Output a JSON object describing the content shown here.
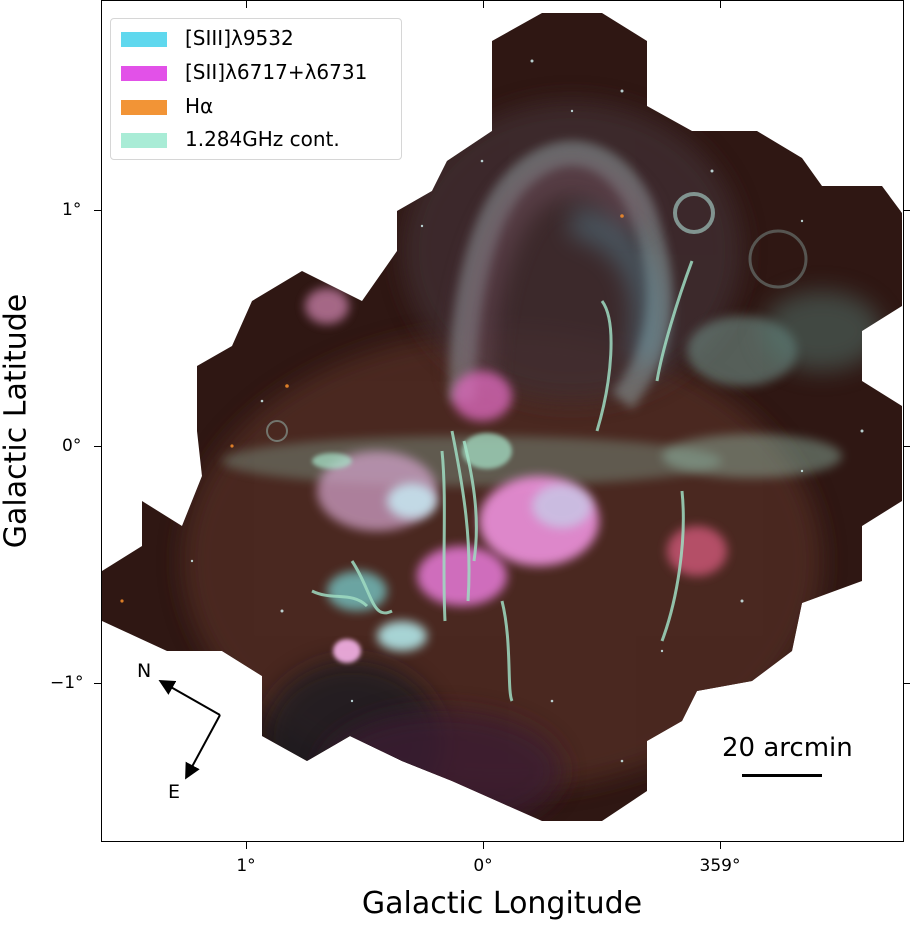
{
  "image": {
    "description_items": {
      "x_label": "Galactic Longitude",
      "y_label": "Galactic Latitude"
    },
    "x_ticks": [
      "1°",
      "0°",
      "359°"
    ],
    "y_ticks": [
      "1°",
      "0°",
      "−1°"
    ],
    "legend": [
      {
        "label": "[SIII]λ9532",
        "color": "#5fd8ee"
      },
      {
        "label": "[SII]λ6717+λ6731",
        "color": "#e251e8"
      },
      {
        "label": "Hα",
        "color": "#f29436"
      },
      {
        "label": "1.284GHz cont.",
        "color": "#a9ecd6"
      }
    ],
    "scale_bar": {
      "label": "20 arcmin"
    },
    "compass": {
      "north": "N",
      "east": "E"
    }
  }
}
